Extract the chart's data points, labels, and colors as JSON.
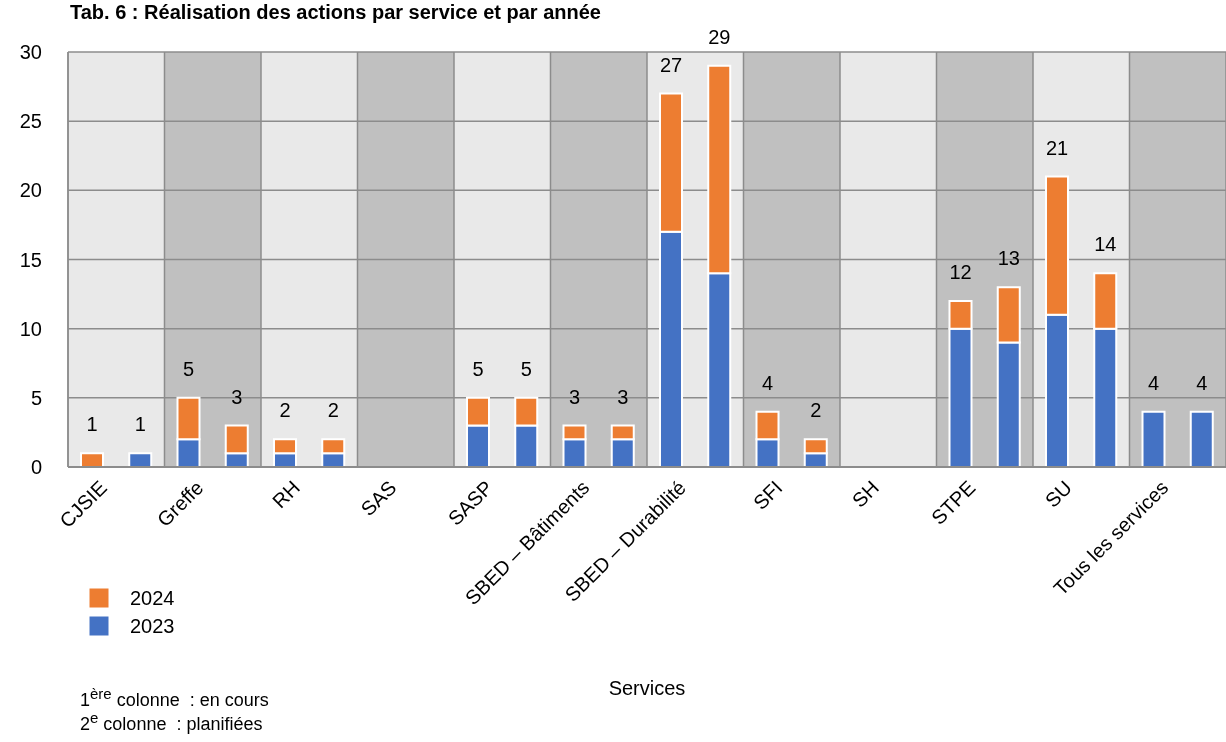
{
  "chart_data": {
    "type": "bar",
    "title": "Tab. 6 : Réalisation des actions par service et par année",
    "xlabel": "Services",
    "categories": [
      "CJSIE",
      null,
      "Greffe",
      null,
      "RH",
      null,
      "SAS",
      null,
      "SASP",
      null,
      "SBED – Bâtiments",
      null,
      "SBED – Durabilité",
      null,
      "SFI",
      null,
      "SH",
      null,
      "STPE",
      null,
      "SU",
      null,
      "Tous les services",
      null
    ],
    "series": [
      {
        "name": "2023",
        "color": "#4472c4",
        "values": [
          0,
          1,
          2,
          1,
          1,
          1,
          0,
          0,
          3,
          3,
          2,
          2,
          17,
          14,
          2,
          1,
          0,
          0,
          10,
          9,
          11,
          10,
          4,
          4
        ]
      },
      {
        "name": "2024",
        "color": "#ed7d31",
        "values": [
          1,
          0,
          3,
          2,
          1,
          1,
          0,
          0,
          2,
          2,
          1,
          1,
          10,
          15,
          2,
          1,
          0,
          0,
          2,
          4,
          10,
          4,
          0,
          0
        ]
      }
    ],
    "stacked": true,
    "totals": [
      "1",
      "1",
      "5",
      "3",
      "2",
      "2",
      null,
      null,
      "5",
      "5",
      "3",
      "3",
      "27",
      "29",
      "4",
      "2",
      null,
      null,
      "12",
      "13",
      "21",
      "14",
      "4",
      "4"
    ],
    "ylim": [
      0,
      30
    ],
    "yticks": [
      0,
      5,
      10,
      15,
      20,
      25,
      30
    ],
    "grid": "y",
    "legend": "bottom left",
    "annotations": [
      "1$^{ère}$ colonne  : en cours",
      "2$^{e}$ colonne  : planifiées"
    ]
  }
}
